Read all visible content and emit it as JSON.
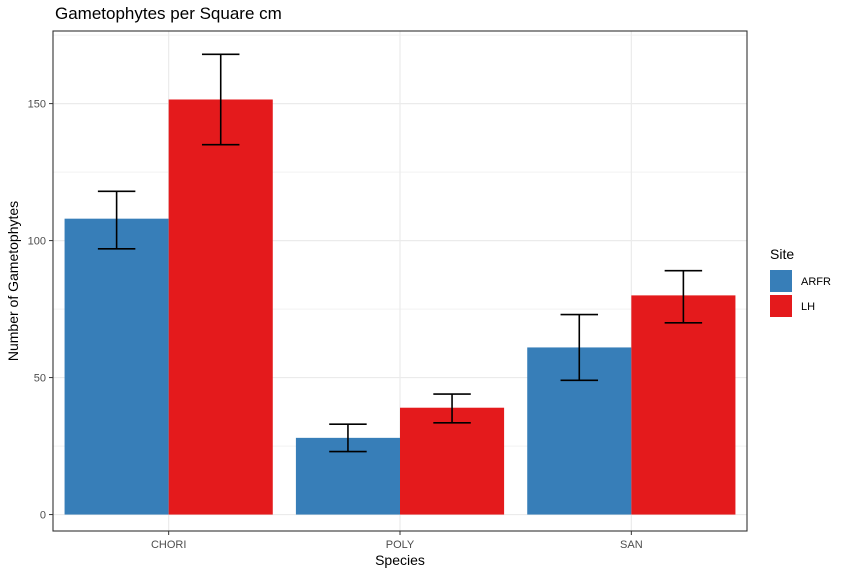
{
  "chart_data": {
    "type": "bar",
    "title": "Gametophytes per Square cm",
    "xlabel": "Species",
    "ylabel": "Number of Gametophytes",
    "categories": [
      "CHORI",
      "POLY",
      "SAN"
    ],
    "series": [
      {
        "name": "ARFR",
        "color": "#377EB8",
        "values": [
          108,
          28,
          61
        ],
        "error_low": [
          97,
          23,
          49
        ],
        "error_high": [
          118,
          33,
          73
        ]
      },
      {
        "name": "LH",
        "color": "#E41A1C",
        "values": [
          151.5,
          39,
          80
        ],
        "error_low": [
          135,
          33.5,
          70
        ],
        "error_high": [
          168,
          44,
          89
        ]
      }
    ],
    "ylim": [
      -6,
      176.5
    ],
    "yticks": [
      0,
      50,
      100,
      150
    ],
    "grid": true,
    "legend": {
      "title": "Site",
      "position": "right"
    }
  }
}
